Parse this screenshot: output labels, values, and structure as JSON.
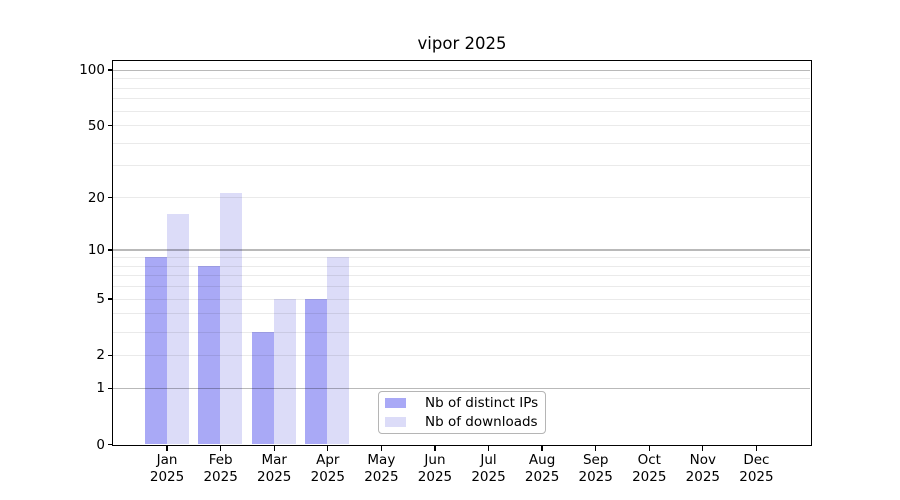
{
  "chart_data": {
    "type": "bar",
    "title": "vipor 2025",
    "categories": [
      "Jan",
      "Feb",
      "Mar",
      "Apr",
      "May",
      "Jun",
      "Jul",
      "Aug",
      "Sep",
      "Oct",
      "Nov",
      "Dec"
    ],
    "x_year": "2025",
    "series": [
      {
        "name": "Nb of distinct IPs",
        "color": "#a9a9f6",
        "values": [
          9,
          8,
          3,
          5,
          0,
          0,
          0,
          0,
          0,
          0,
          0,
          0
        ]
      },
      {
        "name": "Nb of downloads",
        "color": "#dcdcf8",
        "values": [
          16,
          21,
          5,
          9,
          0,
          0,
          0,
          0,
          0,
          0,
          0,
          0
        ]
      }
    ],
    "y_axis": {
      "scale": "log1p",
      "ticks": [
        0,
        1,
        2,
        5,
        10,
        20,
        50,
        100
      ],
      "major_gridlines": [
        1,
        10,
        100
      ],
      "minor_gridlines": [
        2,
        3,
        4,
        5,
        6,
        7,
        8,
        9,
        20,
        30,
        40,
        50,
        60,
        70,
        80,
        90
      ],
      "ylim": [
        0,
        112
      ]
    },
    "legend": {
      "entries": [
        "Nb of distinct IPs",
        "Nb of downloads"
      ],
      "position": "inside-bottom-center"
    },
    "grid": "on",
    "colors": {
      "bar_distinct_ips": "#a9a9f6",
      "bar_downloads": "#dcdcf8",
      "major_grid": "#b9b9b9",
      "minor_grid": "#eaeaea",
      "spine": "#000000",
      "text": "#000000",
      "background": "#ffffff"
    }
  }
}
